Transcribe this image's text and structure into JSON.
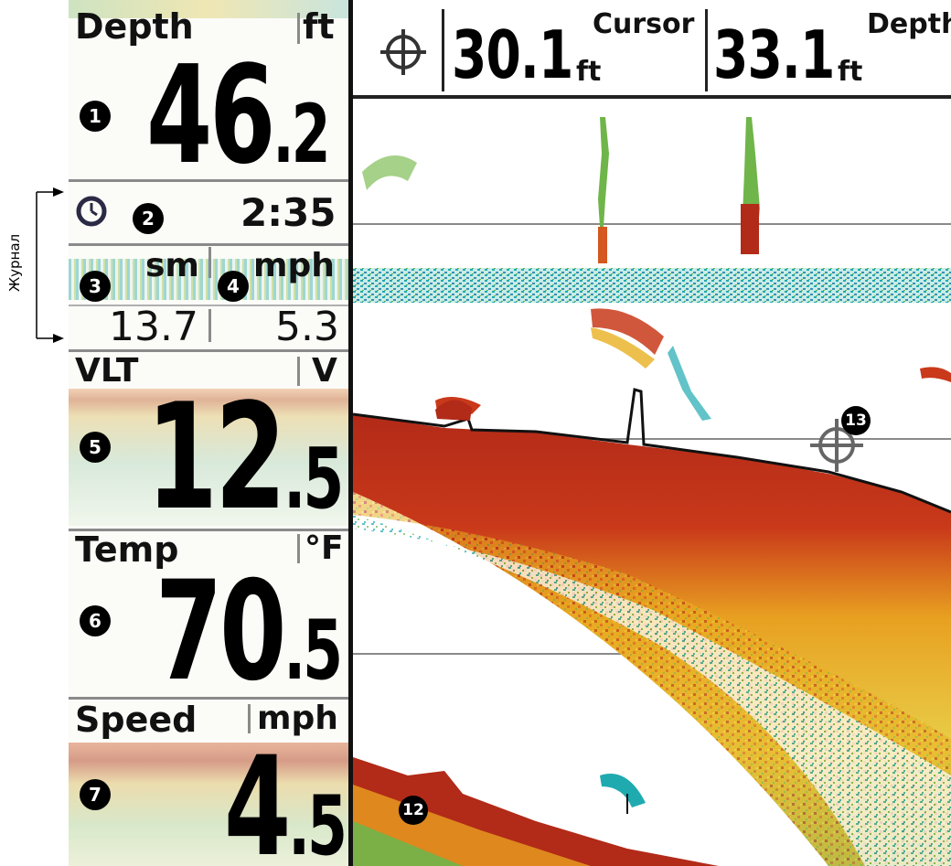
{
  "side_annotation": {
    "label": "Журнал"
  },
  "panels": {
    "depth": {
      "label": "Depth",
      "unit": "ft",
      "value_int": "46",
      "value_dec": ".2",
      "badge": "1"
    },
    "timer": {
      "value": "2:35",
      "badge": "2",
      "icon": "clock-icon"
    },
    "trip": {
      "unit_distance": "sm",
      "unit_speed": "mph",
      "distance_value": "13.7",
      "speed_value": "5.3",
      "badge_distance": "3",
      "badge_speed": "4"
    },
    "voltage": {
      "label": "VLT",
      "unit": "V",
      "value_int": "12",
      "value_dec": ".5",
      "badge": "5"
    },
    "temp": {
      "label": "Temp",
      "unit": "°F",
      "value_int": "70",
      "value_dec": ".5",
      "badge": "6"
    },
    "speed": {
      "label": "Speed",
      "unit": "mph",
      "value_int": "4",
      "value_dec": ".5",
      "badge": "7"
    }
  },
  "top_bar": {
    "cursor_icon": "crosshair-icon",
    "cursor_value": "30.1",
    "cursor_unit": "ft",
    "cursor_label": "Cursor",
    "depth_value": "33.1",
    "depth_unit": "ft",
    "depth_label": "Depth"
  },
  "sonar": {
    "badge_bottom": "12",
    "badge_cursor": "13"
  },
  "colors": {
    "return_strong": "#b22a18",
    "return_mid": "#e8b021",
    "return_weak": "#1faab0",
    "return_green": "#6fb54a",
    "divider": "#8a8a8a"
  }
}
